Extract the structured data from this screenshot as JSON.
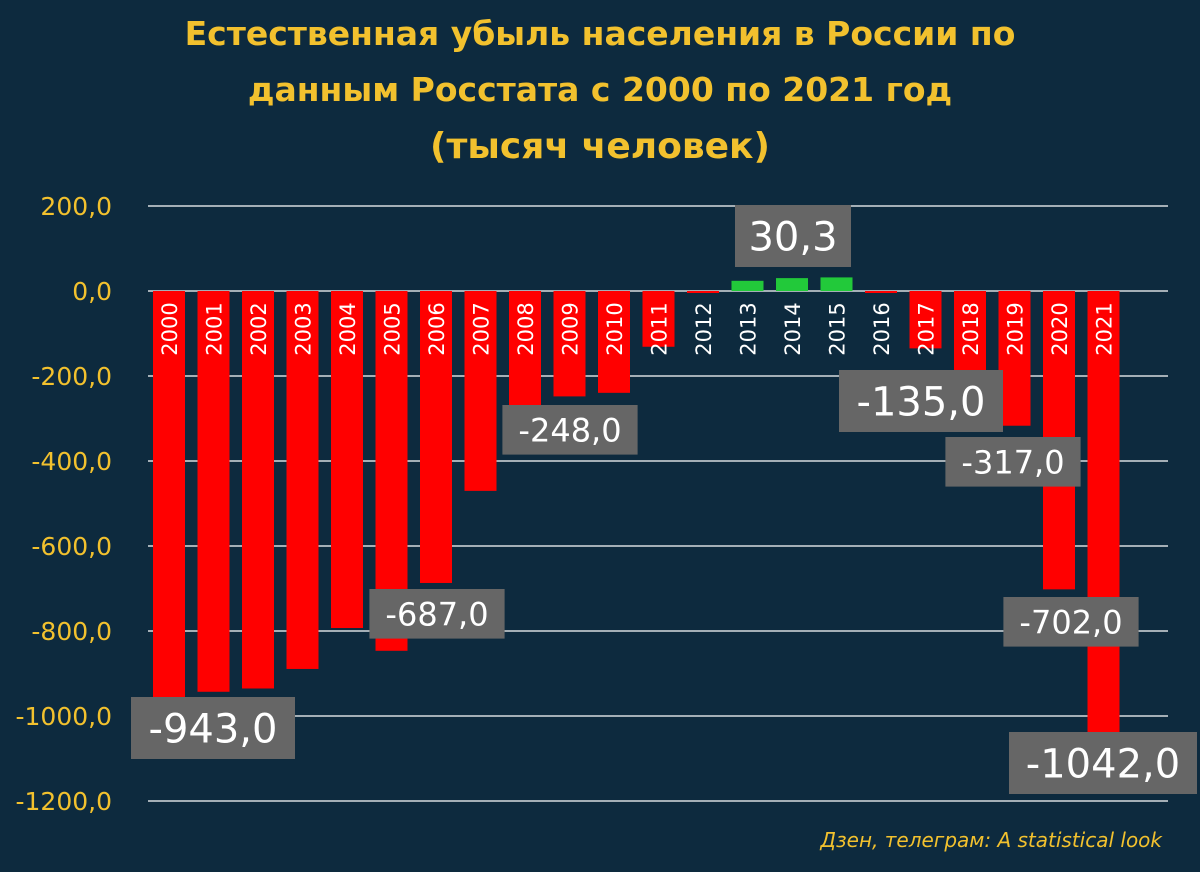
{
  "title_lines": [
    "Естественная убыль населения в России по",
    "данным Росстата с 2000 по 2021 год",
    "(тысяч человек)"
  ],
  "credit": "Дзен, телеграм: A statistical look",
  "colors": {
    "background": "#0d2a3e",
    "title": "#f2c12e",
    "negative_bar": "#ff0000",
    "positive_bar": "#22c93a",
    "label_box": "#666666",
    "gridline": "#ffffff"
  },
  "chart_data": {
    "type": "bar",
    "title": "Естественная убыль населения в России по данным Росстата с 2000 по 2021 год (тысяч человек)",
    "categories": [
      "2000",
      "2001",
      "2002",
      "2003",
      "2004",
      "2005",
      "2006",
      "2007",
      "2008",
      "2009",
      "2010",
      "2011",
      "2012",
      "2013",
      "2014",
      "2015",
      "2016",
      "2017",
      "2018",
      "2019",
      "2020",
      "2021"
    ],
    "values": [
      -958.5,
      -943.0,
      -935.3,
      -889.3,
      -793.0,
      -846.6,
      -687.0,
      -470.3,
      -362.0,
      -248.0,
      -239.6,
      -131.2,
      -4.3,
      24.0,
      30.3,
      32.0,
      -2.3,
      -135.0,
      -224.6,
      -317.0,
      -702.0,
      -1042.0
    ],
    "ylim": [
      -1200,
      200
    ],
    "yticks": [
      200,
      0,
      -200,
      -400,
      -600,
      -800,
      -1000,
      -1200
    ],
    "ytick_labels": [
      "200,0",
      "0,0",
      "-200,0",
      "-400,0",
      "-600,0",
      "-800,0",
      "-1000,0",
      "-1200,0"
    ],
    "grid": true,
    "data_labels": [
      {
        "category": "2001",
        "text": "-943,0"
      },
      {
        "category": "2006",
        "text": "-687,0"
      },
      {
        "category": "2009",
        "text": "-248,0"
      },
      {
        "category": "2014",
        "text": "30,3"
      },
      {
        "category": "2017",
        "text": "-135,0"
      },
      {
        "category": "2019",
        "text": "-317,0"
      },
      {
        "category": "2020",
        "text": "-702,0"
      },
      {
        "category": "2021",
        "text": "-1042,0"
      }
    ]
  }
}
